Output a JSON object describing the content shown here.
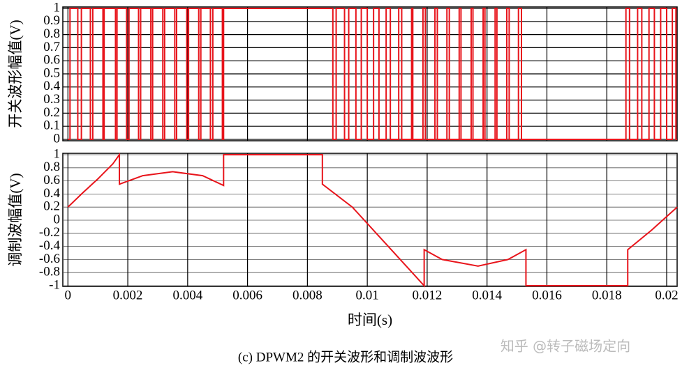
{
  "chart_data": [
    {
      "type": "line",
      "ylabel": "开关波形幅值(V)",
      "grid": true,
      "xticklabels": false,
      "xlim": [
        -0.00017,
        0.02035
      ],
      "ylim": [
        0,
        1
      ],
      "xticks": [
        0,
        0.002,
        0.004,
        0.006,
        0.008,
        0.01,
        0.012,
        0.014,
        0.016,
        0.018,
        0.02
      ],
      "yticks": [
        0,
        0.1,
        0.2,
        0.3,
        0.4,
        0.5,
        0.6,
        0.7,
        0.8,
        0.9,
        1
      ],
      "x": [
        0,
        7e-05,
        0.00033,
        0.00045,
        0.00075,
        0.00083,
        0.00117,
        0.00121,
        0.00159,
        0.00164,
        0.00196,
        0.00204,
        0.00236,
        0.00243,
        0.00277,
        0.00283,
        0.00317,
        0.00323,
        0.00357,
        0.00363,
        0.00397,
        0.00403,
        0.00437,
        0.00444,
        0.00476,
        0.00484,
        0.00516,
        0.0052,
        0.00885,
        0.00896,
        0.00924,
        0.00938,
        0.00962,
        0.0098,
        0.01,
        0.01021,
        0.01039,
        0.01063,
        0.01077,
        0.01105,
        0.01115,
        0.01148,
        0.01152,
        0.01186,
        0.01194,
        0.01226,
        0.01234,
        0.01266,
        0.01274,
        0.01307,
        0.01313,
        0.01347,
        0.01353,
        0.01387,
        0.01393,
        0.01427,
        0.01433,
        0.01466,
        0.01474,
        0.01505,
        0.01515,
        0.01864,
        0.01876,
        0.01903,
        0.01917,
        0.01941,
        0.01959,
        0.0198,
        0.02,
        0.02019,
        0.02031,
        0.02035
      ],
      "series": [
        {
          "color": "#e8141b",
          "drawstyle": "steps-post",
          "values": [
            0,
            1,
            0,
            1,
            0,
            1,
            0,
            1,
            0,
            1,
            0,
            1,
            0,
            1,
            0,
            1,
            0,
            1,
            0,
            1,
            0,
            1,
            0,
            1,
            0,
            1,
            0,
            1,
            0,
            1,
            0,
            1,
            0,
            1,
            0,
            1,
            0,
            1,
            0,
            1,
            0,
            1,
            0,
            1,
            0,
            1,
            0,
            1,
            0,
            1,
            0,
            1,
            0,
            1,
            0,
            1,
            0,
            1,
            0,
            1,
            0,
            1,
            0,
            1,
            0,
            1,
            0,
            1,
            0,
            1,
            0,
            0
          ]
        }
      ]
    },
    {
      "type": "line",
      "ylabel": "调制波幅值(V)",
      "xlabel": "时间(s)",
      "grid": true,
      "xticklabels": true,
      "xlim": [
        -0.00017,
        0.02035
      ],
      "ylim": [
        -1,
        1
      ],
      "xticks": [
        0,
        0.002,
        0.004,
        0.006,
        0.008,
        0.01,
        0.012,
        0.014,
        0.016,
        0.018,
        0.02
      ],
      "yticks": [
        -1,
        -0.8,
        -0.6,
        -0.4,
        -0.2,
        0,
        0.2,
        0.4,
        0.6,
        0.8,
        1
      ],
      "x": [
        0,
        0.0005,
        0.001,
        0.0015,
        0.00172,
        0.00172,
        0.0025,
        0.0035,
        0.0045,
        0.0052,
        0.0052,
        0.0085,
        0.0085,
        0.0095,
        0.0105,
        0.0112,
        0.0119,
        0.0119,
        0.0125,
        0.0137,
        0.0147,
        0.0153,
        0.0153,
        0.0187,
        0.0187,
        0.0195,
        0.02035
      ],
      "series": [
        {
          "color": "#e8141b",
          "drawstyle": "default",
          "values": [
            0.2,
            0.42,
            0.63,
            0.86,
            1,
            0.55,
            0.68,
            0.74,
            0.68,
            0.53,
            1,
            1,
            0.55,
            0.2,
            -0.3,
            -0.65,
            -1,
            -0.45,
            -0.6,
            -0.7,
            -0.6,
            -0.45,
            -1,
            -1,
            -0.45,
            -0.15,
            0.2
          ]
        }
      ]
    }
  ],
  "caption": "(c) DPWM2 的开关波形和调制波波形",
  "watermark": "知乎 @转子磁场定向"
}
